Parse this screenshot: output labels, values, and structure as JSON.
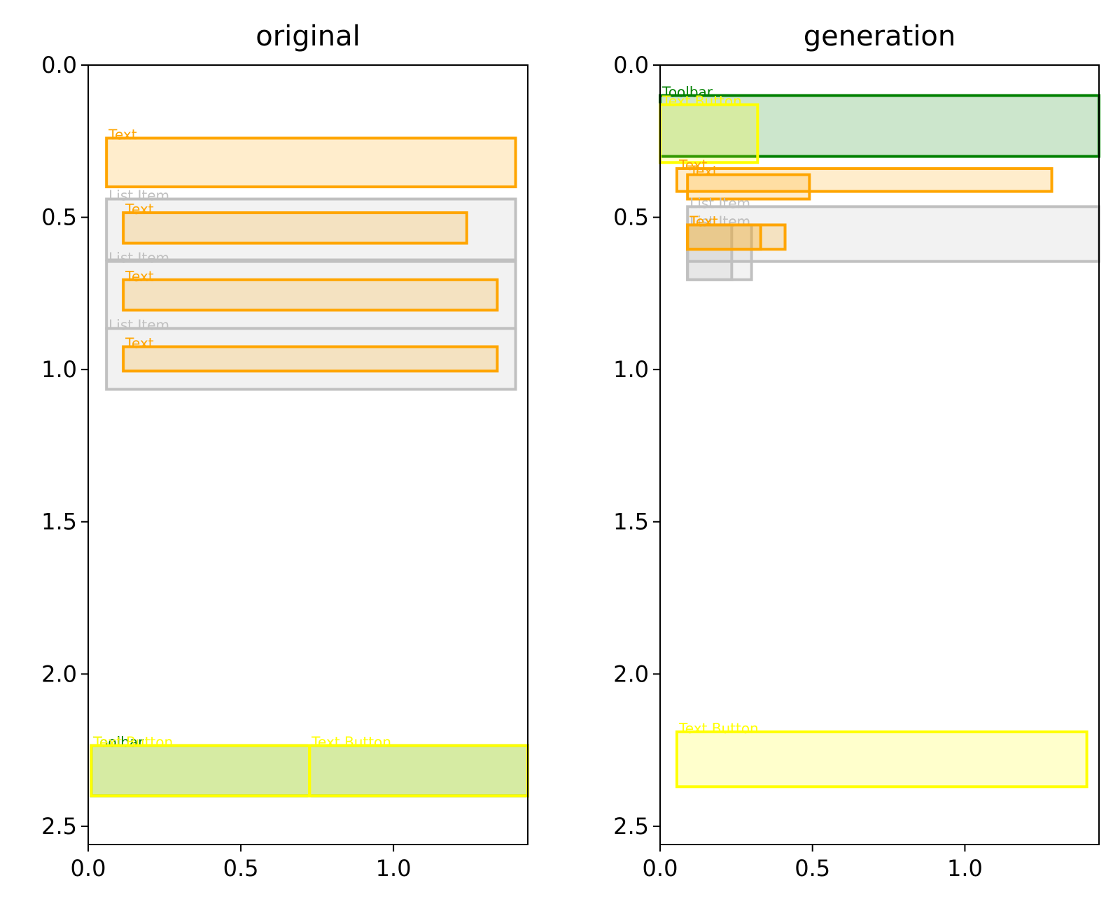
{
  "colors": {
    "Text": "#ffa500",
    "List Item": "#c0c0c0",
    "Toolbar": "#008000",
    "Text Button": "#ffff00"
  },
  "chart_data": [
    {
      "type": "bounding-box-plot",
      "title": "original",
      "xlim": [
        0,
        1.44
      ],
      "ylim": [
        2.56,
        0
      ],
      "xticks": [
        "0.0",
        "0.5",
        "1.0"
      ],
      "yticks": [
        "0.0",
        "0.5",
        "1.0",
        "1.5",
        "2.0",
        "2.5"
      ],
      "boxes": [
        {
          "label": "Text",
          "x0": 0.06,
          "y0": 0.24,
          "x1": 1.4,
          "y1": 0.4
        },
        {
          "label": "List Item",
          "x0": 0.06,
          "y0": 0.44,
          "x1": 1.4,
          "y1": 0.64
        },
        {
          "label": "Text",
          "x0": 0.115,
          "y0": 0.485,
          "x1": 1.24,
          "y1": 0.585
        },
        {
          "label": "List Item",
          "x0": 0.06,
          "y0": 0.645,
          "x1": 1.4,
          "y1": 0.865
        },
        {
          "label": "Text",
          "x0": 0.115,
          "y0": 0.705,
          "x1": 1.34,
          "y1": 0.805
        },
        {
          "label": "List Item",
          "x0": 0.06,
          "y0": 0.865,
          "x1": 1.4,
          "y1": 1.065
        },
        {
          "label": "Text",
          "x0": 0.115,
          "y0": 0.925,
          "x1": 1.34,
          "y1": 1.005
        },
        {
          "label": "Toolbar",
          "x0": 0.01,
          "y0": 2.235,
          "x1": 1.44,
          "y1": 2.4
        },
        {
          "label": "Text Button",
          "x0": 0.01,
          "y0": 2.235,
          "x1": 0.725,
          "y1": 2.4
        },
        {
          "label": "Text Button",
          "x0": 0.725,
          "y0": 2.235,
          "x1": 1.44,
          "y1": 2.4
        }
      ]
    },
    {
      "type": "bounding-box-plot",
      "title": "generation",
      "xlim": [
        0,
        1.44
      ],
      "ylim": [
        2.56,
        0
      ],
      "xticks": [
        "0.0",
        "0.5",
        "1.0"
      ],
      "yticks": [
        "0.0",
        "0.5",
        "1.0",
        "1.5",
        "2.0",
        "2.5"
      ],
      "boxes": [
        {
          "label": "Toolbar",
          "x0": 0.0,
          "y0": 0.1,
          "x1": 1.44,
          "y1": 0.3
        },
        {
          "label": "Text Button",
          "x0": 0.0,
          "y0": 0.13,
          "x1": 0.32,
          "y1": 0.32
        },
        {
          "label": "Text",
          "x0": 0.055,
          "y0": 0.34,
          "x1": 1.285,
          "y1": 0.415
        },
        {
          "label": "Text",
          "x0": 0.09,
          "y0": 0.36,
          "x1": 0.49,
          "y1": 0.44
        },
        {
          "label": "List Item",
          "x0": 0.09,
          "y0": 0.465,
          "x1": 1.44,
          "y1": 0.645
        },
        {
          "label": "List Item",
          "x0": 0.09,
          "y0": 0.525,
          "x1": 0.3,
          "y1": 0.705
        },
        {
          "label": "List Item",
          "x0": 0.09,
          "y0": 0.525,
          "x1": 0.235,
          "y1": 0.705
        },
        {
          "label": "Text",
          "x0": 0.09,
          "y0": 0.525,
          "x1": 0.41,
          "y1": 0.605
        },
        {
          "label": "Text",
          "x0": 0.09,
          "y0": 0.525,
          "x1": 0.33,
          "y1": 0.605
        },
        {
          "label": "Text Button",
          "x0": 0.055,
          "y0": 2.19,
          "x1": 1.4,
          "y1": 2.37
        }
      ]
    }
  ]
}
